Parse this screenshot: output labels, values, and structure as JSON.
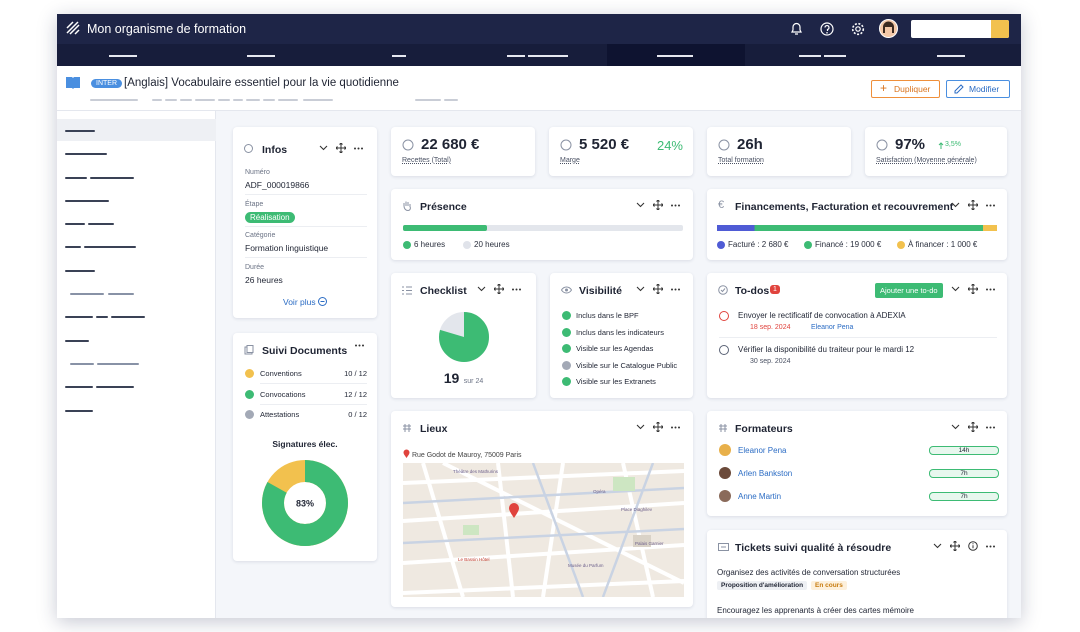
{
  "app": {
    "title": "Mon organisme de formation"
  },
  "header": {
    "badge": "INTER",
    "title": "[Anglais] Vocabulaire essentiel pour la vie quotidienne",
    "actions": [
      "Dupliquer",
      "Modifier"
    ]
  },
  "infos": {
    "title": "Infos",
    "fields": [
      {
        "label": "Numéro",
        "value": "ADF_000019866"
      },
      {
        "label": "Étape",
        "value": "Réalisation"
      },
      {
        "label": "Catégorie",
        "value": "Formation linguistique"
      },
      {
        "label": "Durée",
        "value": "26 heures"
      }
    ],
    "more": "Voir plus"
  },
  "documents": {
    "title": "Suivi Documents",
    "rows": [
      {
        "label": "Conventions",
        "count": "10 / 12"
      },
      {
        "label": "Convocations",
        "count": "12 / 12"
      },
      {
        "label": "Attestations",
        "count": "0 / 12"
      }
    ],
    "signatures": {
      "title": "Signatures élec.",
      "percent": {
        "value": 83,
        "label": "83%"
      }
    }
  },
  "kpis": [
    {
      "value": "22 680 €",
      "label": "Recettes (Total)"
    },
    {
      "value": "5 520 €",
      "label": "Marge",
      "extra": "24%"
    },
    {
      "value": "26h",
      "label": "Total formation"
    },
    {
      "value": "97%",
      "label": "Satisfaction (Moyenne générale)",
      "extra": "3,5%"
    }
  ],
  "presence": {
    "title": "Présence",
    "done": {
      "value": 6,
      "label": "6 heures"
    },
    "total": {
      "value": 20,
      "label": "20 heures"
    }
  },
  "financements": {
    "title": "Financements, Facturation et recouvrement",
    "facture": {
      "value": 2680,
      "label": "Facturé : 2 680 €"
    },
    "finance": {
      "value": 19000,
      "label": "Financé : 19 000 €"
    },
    "a_financer": {
      "value": 1000,
      "label": "À financer : 1 000 €"
    }
  },
  "checklist": {
    "title": "Checklist",
    "done": 19,
    "total": {
      "value": 24,
      "label": "sur 24"
    }
  },
  "visibilite": {
    "title": "Visibilité",
    "items": [
      "Inclus dans le BPF",
      "Inclus dans les indicateurs",
      "Visible sur les Agendas",
      "Visible sur le Catalogue Public",
      "Visible sur les Extranets"
    ]
  },
  "todos": {
    "title": "To-dos",
    "count": "1",
    "add": "Ajouter une to-do",
    "items": [
      {
        "text": "Envoyer le rectificatif de convocation à ADEXIA",
        "date": "18 sep. 2024",
        "assignee": "Eleanor Pena"
      },
      {
        "text": "Vérifier la disponibilité du traiteur pour le mardi 12",
        "date": "30 sep. 2024"
      }
    ]
  },
  "lieux": {
    "title": "Lieux",
    "address": "Rue Godot de Mauroy, 75009 Paris",
    "map_labels": [
      "Théâtre des Mathurins",
      "Opéra",
      "Place Diaghilev",
      "Palais Garnier",
      "Musée du Parfum",
      "Le Bassin Hôtel"
    ]
  },
  "formateurs": {
    "title": "Formateurs",
    "items": [
      {
        "name": "Eleanor Pena",
        "hours": "14h"
      },
      {
        "name": "Arlen Bankston",
        "hours": "7h"
      },
      {
        "name": "Anne Martin",
        "hours": "7h"
      }
    ]
  },
  "tickets": {
    "title": "Tickets suivi qualité à résoudre",
    "items": [
      {
        "text": "Organisez des activités de conversation structurées",
        "tags": [
          "Proposition d'amélioration",
          "En cours"
        ]
      },
      {
        "text": "Encouragez les apprenants à créer des cartes mémoire"
      }
    ]
  }
}
